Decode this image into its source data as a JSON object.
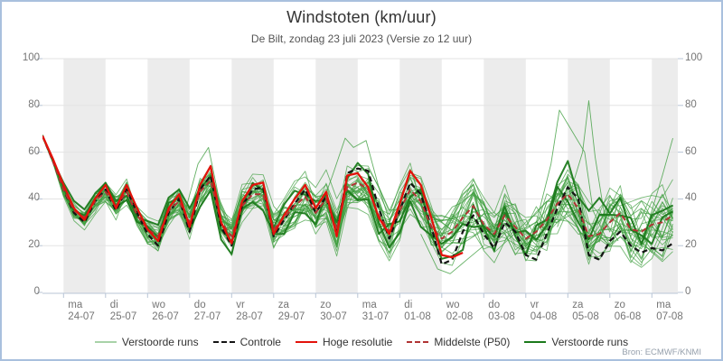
{
  "title": "Windstoten (km/uur)",
  "subtitle": "De Bilt, zondag 23 juli 2023 (Versie zo 12 uur)",
  "source": "Bron: ECMWF/KNMI",
  "colors": {
    "border": "#a9c0de",
    "band": "#ececec",
    "grid": "#e3e3e3",
    "axis": "#b8c5d6",
    "tick_text": "#757575",
    "member": "#3f9e3f",
    "member_dark": "#1b7a1b",
    "member_legend": "#a8d2a8",
    "control": "#141414",
    "hres": "#e3120b",
    "p50": "#b03434"
  },
  "y_axis": {
    "min": 0,
    "max": 100,
    "ticks": [
      0,
      20,
      40,
      60,
      80,
      100
    ]
  },
  "x_axis": {
    "days": [
      {
        "name": "ma",
        "date": "24-07"
      },
      {
        "name": "di",
        "date": "25-07"
      },
      {
        "name": "wo",
        "date": "26-07"
      },
      {
        "name": "do",
        "date": "27-07"
      },
      {
        "name": "vr",
        "date": "28-07"
      },
      {
        "name": "za",
        "date": "29-07"
      },
      {
        "name": "zo",
        "date": "30-07"
      },
      {
        "name": "ma",
        "date": "31-07"
      },
      {
        "name": "di",
        "date": "01-08"
      },
      {
        "name": "wo",
        "date": "02-08"
      },
      {
        "name": "do",
        "date": "03-08"
      },
      {
        "name": "vr",
        "date": "04-08"
      },
      {
        "name": "za",
        "date": "05-08"
      },
      {
        "name": "zo",
        "date": "06-08"
      },
      {
        "name": "ma",
        "date": "07-08"
      }
    ]
  },
  "legend": [
    {
      "label": "Verstoorde runs",
      "style": "member"
    },
    {
      "label": "Controle",
      "style": "control"
    },
    {
      "label": "Hoge resolutie",
      "style": "hres"
    },
    {
      "label": "Middelste (P50)",
      "style": "p50"
    },
    {
      "label": "Verstoorde runs",
      "style": "member_dark"
    }
  ],
  "chart_data": {
    "type": "line",
    "title": "Windstoten (km/uur)",
    "ylabel": "km/uur",
    "ylim": [
      0,
      100
    ],
    "grid": true,
    "legend_position": "bottom",
    "time_reference": "days since 2023-07-24 00:00, 6-hourly steps",
    "t0": -0.5,
    "dt": 0.25,
    "series": [
      {
        "name": "Hoge resolutie",
        "values": [
          67,
          57,
          46,
          36,
          31,
          40,
          46,
          36,
          46,
          36,
          27,
          22,
          36,
          42,
          28,
          46,
          54,
          30,
          21,
          39,
          46,
          47,
          25,
          33,
          40,
          46,
          36,
          43,
          24,
          50,
          51,
          45,
          32,
          25,
          38,
          52,
          46,
          32,
          16,
          15,
          17
        ]
      },
      {
        "name": "Controle",
        "values": [
          67,
          56,
          44,
          34,
          30,
          39,
          44,
          35,
          44,
          34,
          25,
          20,
          34,
          40,
          26,
          44,
          50,
          28,
          20,
          37,
          44,
          45,
          24,
          31,
          38,
          44,
          34,
          41,
          25,
          51,
          53,
          52,
          36,
          23,
          35,
          47,
          42,
          28,
          12,
          14,
          26,
          33,
          25,
          19,
          30,
          26,
          16,
          14,
          25,
          36,
          45,
          40,
          16,
          14,
          22,
          26,
          20,
          17,
          19,
          18,
          21
        ]
      },
      {
        "name": "Middelste (P50)",
        "values": [
          67,
          56,
          44,
          35,
          32,
          39,
          43,
          37,
          43,
          33,
          27,
          24,
          35,
          39,
          30,
          43,
          48,
          30,
          24,
          37,
          42,
          42,
          27,
          32,
          37,
          41,
          34,
          40,
          27,
          45,
          47,
          44,
          33,
          26,
          35,
          44,
          39,
          28,
          23,
          26,
          32,
          37,
          29,
          25,
          33,
          28,
          23,
          26,
          31,
          38,
          42,
          36,
          24,
          25,
          30,
          34,
          27,
          26,
          29,
          30,
          33
        ]
      }
    ],
    "ensemble": {
      "description": "~50 perturbed ECMWF runs shown as green plume around the median",
      "light_count": 28,
      "dark_count": 2,
      "spread": [
        2,
        3,
        4,
        5,
        5,
        6,
        6,
        7,
        7,
        7,
        8,
        8,
        8,
        8,
        9,
        9,
        9,
        9,
        10,
        10,
        10,
        10,
        11,
        11,
        11,
        11,
        12,
        12,
        12,
        12,
        13,
        13,
        13,
        13,
        14,
        14,
        14,
        14,
        15,
        15,
        15,
        15,
        16,
        16,
        16,
        16,
        16,
        16,
        17,
        17,
        17,
        17,
        17,
        17,
        18,
        18,
        18,
        18,
        18,
        18,
        18
      ],
      "light_seeds": [
        3,
        4,
        5,
        6,
        7,
        8,
        9,
        10,
        11,
        12,
        13,
        14,
        15,
        16,
        17,
        18,
        19,
        20,
        21,
        22,
        23,
        24,
        25,
        26,
        27,
        28,
        29,
        30
      ],
      "dark_seeds": [
        101,
        102
      ],
      "outliers": [
        {
          "t": [
            11.25,
            11.6,
            11.8,
            12.0,
            12.4,
            12.6,
            13.0
          ],
          "v": [
            30,
            55,
            78,
            72,
            60,
            35,
            20
          ]
        },
        {
          "t": [
            11.75,
            12.1,
            12.35,
            12.5,
            12.65,
            12.9,
            13.2
          ],
          "v": [
            28,
            45,
            60,
            82,
            58,
            30,
            22
          ]
        },
        {
          "t": [
            6.0,
            6.4,
            6.7,
            6.9,
            7.2,
            7.5,
            7.8
          ],
          "v": [
            30,
            50,
            66,
            62,
            65,
            45,
            28
          ]
        },
        {
          "t": [
            13.75,
            14.0,
            14.25,
            14.5
          ],
          "v": [
            20,
            35,
            50,
            66
          ]
        },
        {
          "t": [
            2.9,
            3.2,
            3.45,
            3.7,
            4.0
          ],
          "v": [
            35,
            55,
            62,
            40,
            28
          ]
        },
        {
          "t": [
            8.5,
            8.9,
            9.2,
            9.6,
            10.0
          ],
          "v": [
            25,
            10,
            8,
            14,
            20
          ]
        }
      ]
    }
  }
}
